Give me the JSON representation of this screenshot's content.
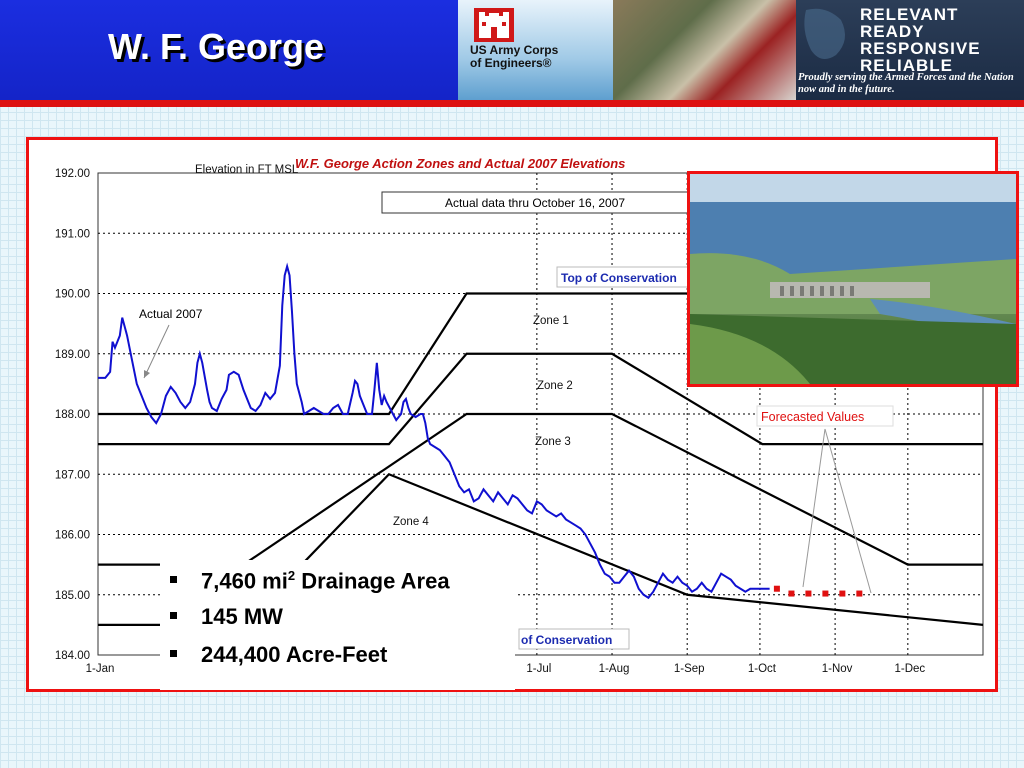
{
  "header": {
    "title": "W. F. George",
    "org_line1": "US Army Corps",
    "org_line2": "of Engineers®",
    "slogan": [
      "RELEVANT",
      "READY",
      "RESPONSIVE",
      "RELIABLE"
    ],
    "slogan_sub": "Proudly serving the Armed Forces and the Nation now and in the future.",
    "accent_color": "#1424c8",
    "rule_color": "#dd1111"
  },
  "bullets": [
    {
      "value": "7,460 mi",
      "sup": "2",
      "label": " Drainage Area"
    },
    {
      "value": "145 MW",
      "sup": "",
      "label": ""
    },
    {
      "value": "244,400 Acre-Feet",
      "sup": "",
      "label": ""
    }
  ],
  "chart_data": {
    "type": "line",
    "title": "W.F. George Action Zones and Actual 2007 Elevations",
    "ylabel": "Elevation in FT MSL",
    "ylim": [
      184.0,
      192.0
    ],
    "yticks": [
      "184.00",
      "185.00",
      "186.00",
      "187.00",
      "188.00",
      "189.00",
      "190.00",
      "191.00",
      "192.00"
    ],
    "xlim": [
      0,
      365
    ],
    "xticks": [
      {
        "day": 0,
        "label": "1-Jan"
      },
      {
        "day": 181,
        "label": "1-Jul"
      },
      {
        "day": 212,
        "label": "1-Aug"
      },
      {
        "day": 243,
        "label": "1-Sep"
      },
      {
        "day": 273,
        "label": "1-Oct"
      },
      {
        "day": 304,
        "label": "1-Nov"
      },
      {
        "day": 334,
        "label": "1-Dec"
      }
    ],
    "annotations": {
      "actual_data_note": "Actual data thru October 16, 2007",
      "actual_label": "Actual 2007",
      "top_conservation": "Top of Conservation",
      "bottom_conservation": "of Conservation",
      "forecast_label": "Forecasted Values",
      "zones": [
        "Zone 1",
        "Zone 2",
        "Zone 3",
        "Zone 4"
      ]
    },
    "zone_lines": [
      {
        "name": "Top of Conservation",
        "points": [
          [
            0,
            188.0
          ],
          [
            120,
            188.0
          ],
          [
            152,
            190.0
          ],
          [
            334,
            190.0
          ]
        ]
      },
      {
        "name": "Zone 1/2 boundary",
        "points": [
          [
            0,
            187.5
          ],
          [
            120,
            187.5
          ],
          [
            152,
            189.0
          ],
          [
            212,
            189.0
          ],
          [
            274,
            187.5
          ],
          [
            365,
            187.5
          ]
        ]
      },
      {
        "name": "Zone 2/3 boundary",
        "points": [
          [
            0,
            185.5
          ],
          [
            60,
            185.5
          ],
          [
            152,
            188.0
          ],
          [
            212,
            188.0
          ],
          [
            334,
            185.5
          ],
          [
            365,
            185.5
          ]
        ]
      },
      {
        "name": "Zone 3/4 boundary",
        "points": [
          [
            0,
            184.5
          ],
          [
            60,
            184.5
          ],
          [
            120,
            187.0
          ],
          [
            243,
            185.0
          ],
          [
            365,
            184.5
          ]
        ]
      }
    ],
    "series": [
      {
        "name": "Actual 2007",
        "color": "#1010d0",
        "points": [
          [
            0,
            188.6
          ],
          [
            3,
            188.6
          ],
          [
            5,
            188.7
          ],
          [
            6,
            189.2
          ],
          [
            7,
            189.1
          ],
          [
            9,
            189.3
          ],
          [
            10,
            189.6
          ],
          [
            12,
            189.3
          ],
          [
            14,
            188.9
          ],
          [
            16,
            188.5
          ],
          [
            18,
            188.3
          ],
          [
            20,
            188.1
          ],
          [
            22,
            187.95
          ],
          [
            24,
            187.85
          ],
          [
            26,
            188.0
          ],
          [
            28,
            188.3
          ],
          [
            30,
            188.45
          ],
          [
            32,
            188.35
          ],
          [
            34,
            188.2
          ],
          [
            36,
            188.1
          ],
          [
            38,
            188.2
          ],
          [
            40,
            188.5
          ],
          [
            41,
            188.85
          ],
          [
            42,
            189.0
          ],
          [
            43,
            188.85
          ],
          [
            45,
            188.4
          ],
          [
            46,
            188.2
          ],
          [
            47,
            188.1
          ],
          [
            49,
            188.05
          ],
          [
            51,
            188.25
          ],
          [
            53,
            188.4
          ],
          [
            54,
            188.65
          ],
          [
            56,
            188.7
          ],
          [
            58,
            188.65
          ],
          [
            60,
            188.4
          ],
          [
            62,
            188.2
          ],
          [
            63,
            188.1
          ],
          [
            65,
            188.05
          ],
          [
            67,
            188.15
          ],
          [
            69,
            188.35
          ],
          [
            71,
            188.25
          ],
          [
            73,
            188.35
          ],
          [
            75,
            188.8
          ],
          [
            76,
            189.8
          ],
          [
            77,
            190.3
          ],
          [
            78,
            190.45
          ],
          [
            79,
            190.3
          ],
          [
            80,
            189.7
          ],
          [
            81,
            189.0
          ],
          [
            82,
            188.5
          ],
          [
            84,
            188.2
          ],
          [
            85,
            188.0
          ],
          [
            87,
            188.05
          ],
          [
            89,
            188.1
          ],
          [
            91,
            188.05
          ],
          [
            93,
            188.0
          ],
          [
            95,
            188.0
          ],
          [
            97,
            188.1
          ],
          [
            99,
            188.15
          ],
          [
            101,
            188.0
          ],
          [
            103,
            188.0
          ],
          [
            105,
            188.35
          ],
          [
            106,
            188.55
          ],
          [
            107,
            188.5
          ],
          [
            108,
            188.3
          ],
          [
            110,
            188.1
          ],
          [
            111,
            188.0
          ],
          [
            113,
            188.0
          ],
          [
            114,
            188.4
          ],
          [
            115,
            188.85
          ],
          [
            116,
            188.4
          ],
          [
            117,
            188.15
          ],
          [
            118,
            188.3
          ],
          [
            119,
            188.2
          ],
          [
            121,
            188.05
          ],
          [
            123,
            187.9
          ],
          [
            125,
            188.0
          ],
          [
            126,
            188.2
          ],
          [
            127,
            188.25
          ],
          [
            128,
            188.1
          ],
          [
            129,
            188.0
          ],
          [
            131,
            187.95
          ],
          [
            133,
            188.0
          ],
          [
            134,
            188.0
          ],
          [
            135,
            187.85
          ],
          [
            136,
            187.6
          ],
          [
            137,
            187.5
          ],
          [
            139,
            187.45
          ],
          [
            141,
            187.4
          ],
          [
            143,
            187.3
          ],
          [
            145,
            187.2
          ],
          [
            147,
            187.0
          ],
          [
            149,
            186.8
          ],
          [
            151,
            186.7
          ],
          [
            153,
            186.75
          ],
          [
            155,
            186.55
          ],
          [
            157,
            186.6
          ],
          [
            159,
            186.75
          ],
          [
            161,
            186.65
          ],
          [
            163,
            186.55
          ],
          [
            165,
            186.7
          ],
          [
            167,
            186.6
          ],
          [
            169,
            186.5
          ],
          [
            171,
            186.65
          ],
          [
            173,
            186.6
          ],
          [
            175,
            186.5
          ],
          [
            177,
            186.4
          ],
          [
            179,
            186.35
          ],
          [
            181,
            186.55
          ],
          [
            183,
            186.5
          ],
          [
            185,
            186.4
          ],
          [
            187,
            186.35
          ],
          [
            189,
            186.3
          ],
          [
            191,
            186.35
          ],
          [
            193,
            186.25
          ],
          [
            195,
            186.2
          ],
          [
            197,
            186.15
          ],
          [
            199,
            186.1
          ],
          [
            201,
            186.0
          ],
          [
            203,
            185.85
          ],
          [
            205,
            185.7
          ],
          [
            207,
            185.5
          ],
          [
            209,
            185.35
          ],
          [
            211,
            185.3
          ],
          [
            213,
            185.2
          ],
          [
            215,
            185.2
          ],
          [
            217,
            185.3
          ],
          [
            219,
            185.4
          ],
          [
            221,
            185.3
          ],
          [
            223,
            185.1
          ],
          [
            225,
            185.0
          ],
          [
            227,
            184.95
          ],
          [
            229,
            185.05
          ],
          [
            231,
            185.2
          ],
          [
            233,
            185.35
          ],
          [
            235,
            185.25
          ],
          [
            237,
            185.2
          ],
          [
            239,
            185.3
          ],
          [
            241,
            185.2
          ],
          [
            243,
            185.15
          ],
          [
            245,
            185.05
          ],
          [
            247,
            185.1
          ],
          [
            249,
            185.2
          ],
          [
            251,
            185.1
          ],
          [
            253,
            185.05
          ],
          [
            255,
            185.2
          ],
          [
            257,
            185.35
          ],
          [
            259,
            185.3
          ],
          [
            261,
            185.25
          ],
          [
            263,
            185.15
          ],
          [
            265,
            185.1
          ],
          [
            267,
            185.05
          ],
          [
            269,
            185.1
          ],
          [
            271,
            185.1
          ],
          [
            273,
            185.1
          ],
          [
            275,
            185.1
          ],
          [
            277,
            185.1
          ]
        ]
      },
      {
        "name": "Forecasted Values",
        "color": "#e01010",
        "points": [
          [
            280,
            185.1
          ],
          [
            286,
            185.02
          ],
          [
            293,
            185.02
          ],
          [
            300,
            185.02
          ],
          [
            307,
            185.02
          ],
          [
            314,
            185.02
          ]
        ]
      }
    ]
  }
}
